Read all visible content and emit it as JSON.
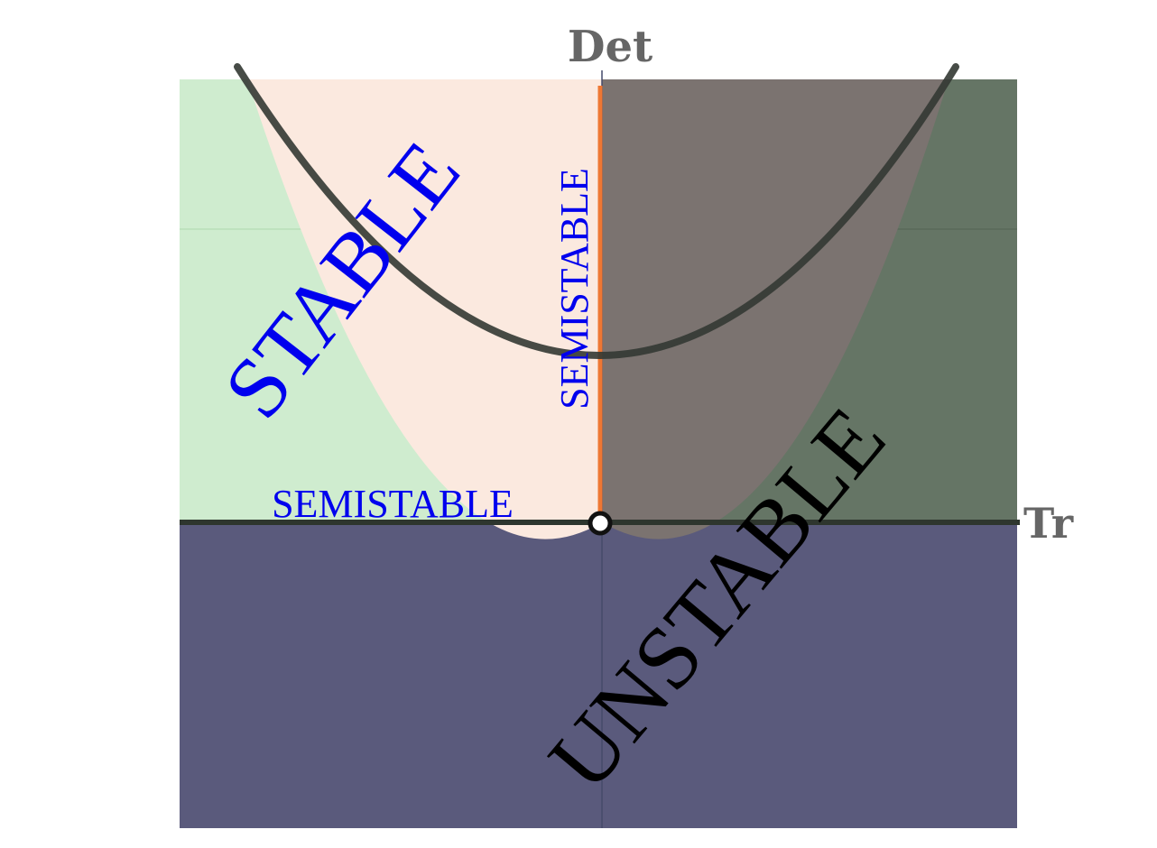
{
  "axes": {
    "x_label": "Tr",
    "y_label": "Det"
  },
  "regions": {
    "stable": {
      "label": "STABLE",
      "color": "#0000ee"
    },
    "semistable_vertical": {
      "label": "SEMISTABLE",
      "color": "#0000ee"
    },
    "semistable_horizontal": {
      "label": "SEMISTABLE",
      "color": "#0000ee"
    },
    "unstable": {
      "label": "UNSTABLE",
      "color": "#000000"
    }
  },
  "colors": {
    "green_fill": "#cfeccf",
    "peach_fill": "#fbe9df",
    "brown_fill": "#7b7370",
    "dark_green_fill": "#657565",
    "navy_fill": "#5a5a7c",
    "semistable_line": "#ee7733",
    "parabola": "#333833"
  }
}
